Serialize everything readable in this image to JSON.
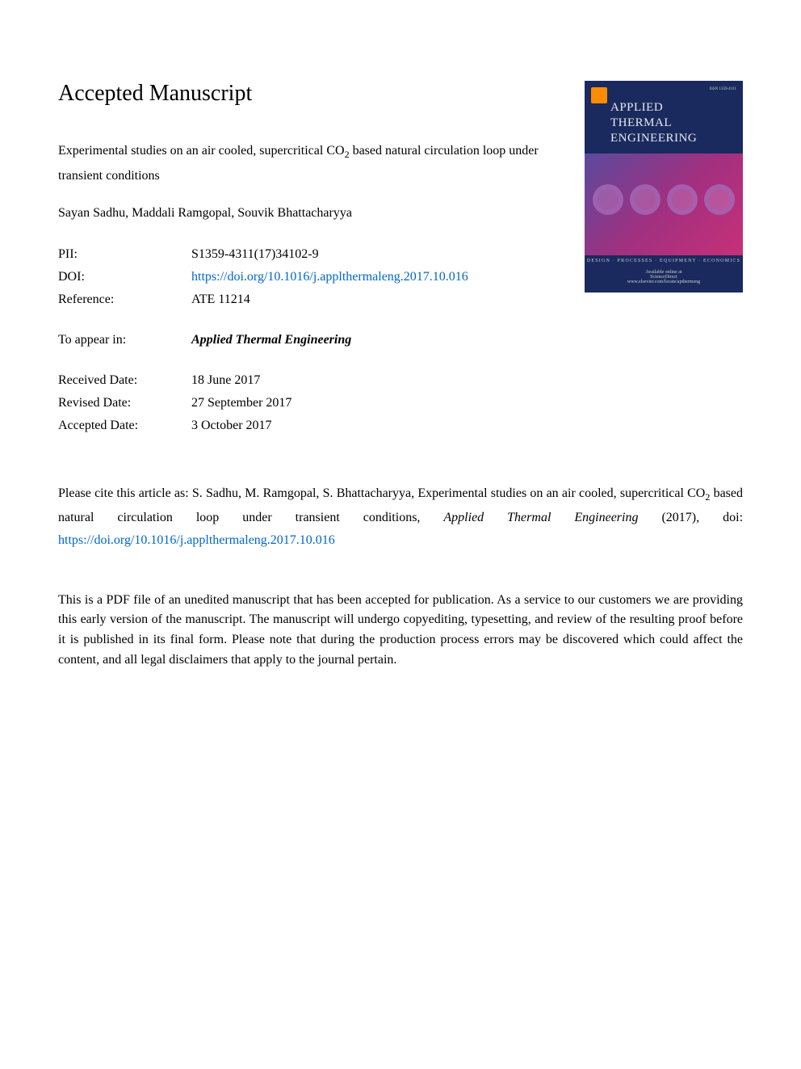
{
  "heading": "Accepted Manuscript",
  "article": {
    "title_pre": "Experimental studies on an air cooled, supercritical CO",
    "title_sub": "2",
    "title_post": " based natural circulation loop under transient conditions"
  },
  "authors": "Sayan Sadhu, Maddali Ramgopal, Souvik Bhattacharyya",
  "meta": {
    "pii_label": "PII:",
    "pii_value": "S1359-4311(17)34102-9",
    "doi_label": "DOI:",
    "doi_value": "https://doi.org/10.1016/j.applthermaleng.2017.10.016",
    "ref_label": "Reference:",
    "ref_value": "ATE 11214",
    "appear_label": "To appear in:",
    "appear_value": "Applied Thermal Engineering",
    "received_label": "Received Date:",
    "received_value": "18 June 2017",
    "revised_label": "Revised Date:",
    "revised_value": "27 September 2017",
    "accepted_label": "Accepted Date:",
    "accepted_value": "3 October 2017"
  },
  "cover": {
    "issn": "ISSN 1359-4311",
    "line1": "APPLIED",
    "line2": "THERMAL",
    "line3": "ENGINEERING",
    "tagline": "DESIGN · PROCESSES · EQUIPMENT · ECONOMICS",
    "available": "Available online at",
    "sd": "ScienceDirect",
    "url": "www.elsevier.com/locate/apthermeng"
  },
  "citation": {
    "prefix": "Please cite this article as: S. Sadhu, M. Ramgopal, S. Bhattacharyya, Experimental studies on an air cooled, supercritical CO",
    "sub": "2",
    "mid": " based natural circulation loop under transient conditions, ",
    "journal": "Applied Thermal Engineering",
    "year": " (2017), doi: ",
    "doi": "https://doi.org/10.1016/j.applthermaleng.2017.10.016"
  },
  "disclaimer": "This is a PDF file of an unedited manuscript that has been accepted for publication. As a service to our customers we are providing this early version of the manuscript. The manuscript will undergo copyediting, typesetting, and review of the resulting proof before it is published in its final form. Please note that during the production process errors may be discovered which could affect the content, and all legal disclaimers that apply to the journal pertain."
}
